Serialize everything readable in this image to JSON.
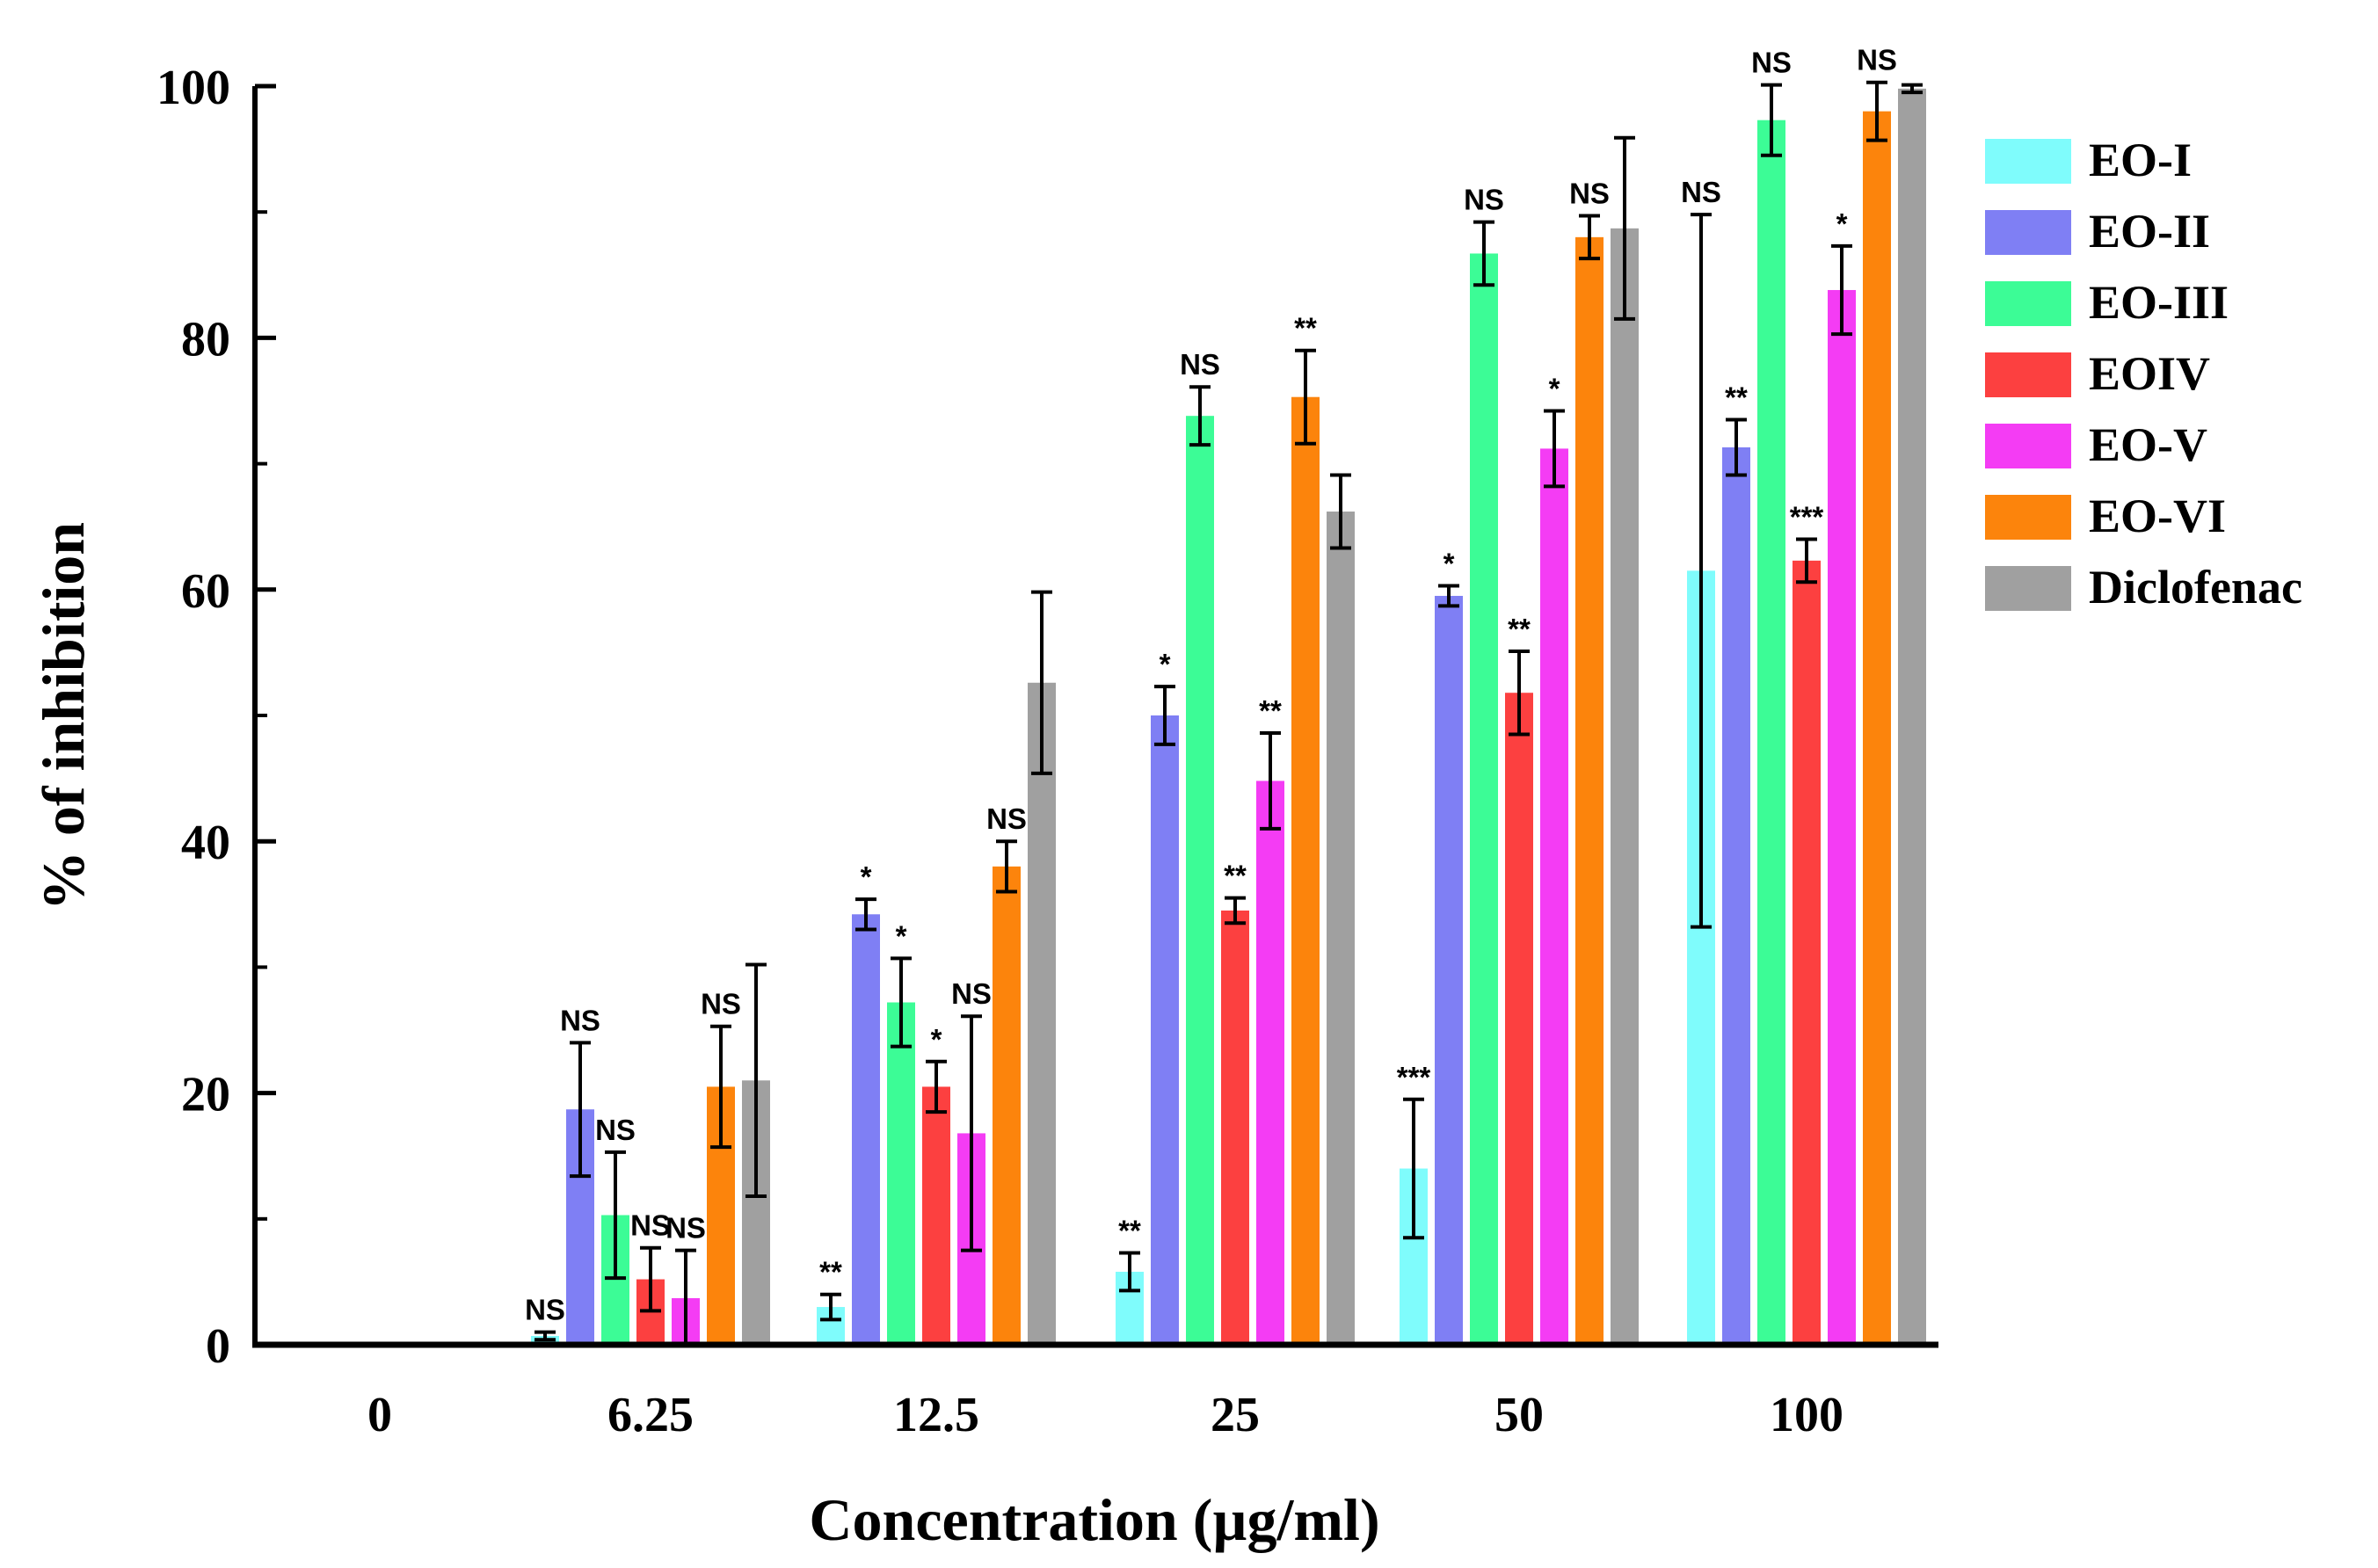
{
  "chart_data": {
    "type": "bar",
    "xlabel": "Concentration (µg/ml)",
    "ylabel": "% of inhibition",
    "ylim": [
      0,
      100
    ],
    "yticks": [
      0,
      20,
      40,
      60,
      80,
      100
    ],
    "categories": [
      "0",
      "6.25",
      "12.5",
      "25",
      "50",
      "100"
    ],
    "legend_position": "right",
    "series": [
      {
        "name": "EO-I",
        "color": "#7ffcfc",
        "values": [
          0,
          0.7,
          3.0,
          5.8,
          14.0,
          61.5
        ],
        "errors": [
          0,
          0.3,
          1.0,
          1.5,
          5.5,
          28.3
        ],
        "sig": [
          "",
          "NS",
          "**",
          "**",
          "***",
          "NS"
        ]
      },
      {
        "name": "EO-II",
        "color": "#7f7ff4",
        "values": [
          0,
          18.7,
          34.2,
          50.0,
          59.5,
          71.3
        ],
        "errors": [
          0,
          5.3,
          1.2,
          2.3,
          0.8,
          2.2
        ],
        "sig": [
          "",
          "NS",
          "*",
          "*",
          "*",
          "**"
        ]
      },
      {
        "name": "EO-III",
        "color": "#3cfc96",
        "values": [
          0,
          10.3,
          27.2,
          73.8,
          86.7,
          97.3
        ],
        "errors": [
          0,
          5.0,
          3.5,
          2.3,
          2.5,
          2.8
        ],
        "sig": [
          "",
          "NS",
          "*",
          "NS",
          "NS",
          "NS"
        ]
      },
      {
        "name": "EOIV",
        "color": "#fc4040",
        "values": [
          0,
          5.2,
          20.5,
          34.5,
          51.8,
          62.3
        ],
        "errors": [
          0,
          2.5,
          2.0,
          1.0,
          3.3,
          1.7
        ],
        "sig": [
          "",
          "NS",
          "*",
          "**",
          "**",
          "***"
        ]
      },
      {
        "name": "EO-V",
        "color": "#f43cf4",
        "values": [
          0,
          3.7,
          16.8,
          44.8,
          71.2,
          83.8
        ],
        "errors": [
          0,
          3.8,
          9.3,
          3.8,
          3.0,
          3.5
        ],
        "sig": [
          "",
          "NS",
          "NS",
          "**",
          "*",
          "*"
        ]
      },
      {
        "name": "EO-VI",
        "color": "#fc840c",
        "values": [
          0,
          20.5,
          38.0,
          75.3,
          88.0,
          98.0
        ],
        "errors": [
          0,
          4.8,
          2.0,
          3.7,
          1.7,
          2.3
        ],
        "sig": [
          "",
          "NS",
          "NS",
          "**",
          "NS",
          "NS"
        ]
      },
      {
        "name": "Diclofenac",
        "color": "#a0a0a0",
        "values": [
          0,
          21.0,
          52.6,
          66.2,
          88.7,
          99.8
        ],
        "errors": [
          0,
          9.2,
          7.2,
          2.9,
          7.2,
          0.3
        ],
        "sig": [
          "",
          "",
          "",
          "",
          "",
          ""
        ]
      }
    ]
  }
}
